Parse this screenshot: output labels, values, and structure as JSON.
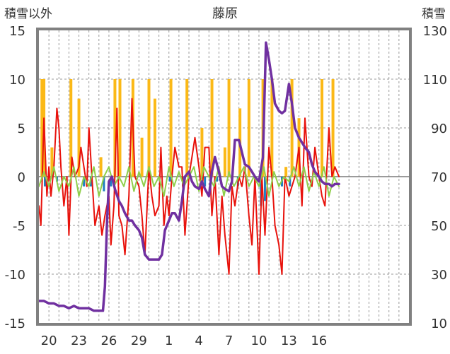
{
  "chart_data": {
    "type": "line",
    "title": "藤原",
    "y_left_label": "積雪以外",
    "y_right_label": "積雪",
    "y_left_ticks": [
      "15",
      "10",
      "5",
      "0",
      "-5",
      "-10",
      "-15"
    ],
    "y_right_ticks": [
      "130",
      "110",
      "90",
      "70",
      "50",
      "30",
      "10"
    ],
    "x_tick_labels": [
      "20",
      "23",
      "26",
      "29",
      "1",
      "4",
      "7",
      "10",
      "13",
      "16"
    ],
    "y_left_range": [
      -15,
      15
    ],
    "y_right_range": [
      10,
      130
    ],
    "x_range": [
      0,
      37
    ],
    "x_tick_positions": [
      1,
      4,
      7,
      10,
      13,
      16,
      19,
      22,
      25,
      28
    ],
    "grid": true,
    "colors": {
      "red": "#e8120c",
      "orange": "#fbb917",
      "green": "#8fcf4a",
      "blue": "#1f7fc1",
      "purple": "#7030a0",
      "frame": "#808080"
    },
    "series": [
      {
        "key": "red",
        "axis": "left",
        "x": [
          0,
          0.2,
          0.5,
          0.8,
          1.0,
          1.2,
          1.5,
          1.8,
          2.0,
          2.2,
          2.5,
          2.8,
          3.0,
          3.3,
          3.6,
          4.0,
          4.2,
          4.5,
          4.8,
          5.0,
          5.3,
          5.6,
          6.0,
          6.3,
          6.6,
          7.0,
          7.2,
          7.5,
          7.8,
          8.0,
          8.3,
          8.6,
          9.0,
          9.3,
          9.6,
          10.0,
          10.3,
          10.6,
          11.0,
          11.3,
          11.6,
          12.0,
          12.2,
          12.5,
          12.8,
          13.0,
          13.3,
          13.6,
          14.0,
          14.3,
          14.6,
          15.0,
          15.3,
          15.6,
          16.0,
          16.3,
          16.6,
          17.0,
          17.3,
          17.6,
          18.0,
          18.3,
          18.6,
          19.0,
          19.3,
          19.6,
          20.0,
          20.3,
          20.6,
          21.0,
          21.3,
          21.6,
          22.0,
          22.3,
          22.6,
          23.0,
          23.3,
          23.6,
          24.0,
          24.3,
          24.6,
          25.0,
          25.3,
          25.6,
          26.0,
          26.3,
          26.6,
          27.0,
          27.3,
          27.6,
          28.0,
          28.3,
          28.6,
          29.0,
          29.3,
          29.6,
          30.0
        ],
        "values": [
          -3,
          -5,
          6,
          -2,
          1,
          -2,
          1,
          7,
          5,
          1,
          -3,
          0,
          -6,
          2,
          0,
          1,
          3,
          1,
          -1,
          5,
          0,
          -5,
          -3,
          -6,
          -4,
          -2,
          -7,
          -3,
          7,
          -4,
          -5,
          -8,
          -2,
          8,
          0,
          -1,
          -4,
          -8,
          1,
          -2,
          -4,
          -3,
          3,
          -5,
          -2,
          -4,
          0,
          3,
          1,
          1,
          -6,
          0,
          2,
          4,
          1,
          -2,
          3,
          3,
          -4,
          0,
          -8,
          -2,
          -6,
          -10,
          -1,
          -3,
          0,
          -1,
          1,
          -4,
          -7,
          0,
          -10,
          0,
          -6,
          3,
          0,
          -5,
          -7,
          -10,
          0,
          -2,
          -1,
          0,
          3,
          -3,
          6,
          0,
          -1,
          3,
          0,
          -2,
          -3,
          5,
          0,
          1,
          0
        ]
      },
      {
        "key": "green",
        "axis": "left",
        "x": [
          0,
          0.5,
          1.0,
          1.5,
          2.0,
          2.5,
          3.0,
          3.5,
          4.0,
          4.5,
          5.0,
          5.5,
          6.0,
          6.5,
          7.0,
          7.5,
          8.0,
          8.5,
          9.0,
          9.5,
          10.0,
          10.5,
          11.0,
          11.5,
          12.0,
          12.5,
          13.0,
          13.5,
          14.0,
          14.5,
          15.0,
          15.5,
          16.0,
          16.5,
          17.0,
          17.5,
          18.0,
          18.5,
          19.0,
          19.5,
          20.0,
          20.5,
          21.0,
          21.5,
          22.0,
          22.5,
          23.0,
          23.5,
          24.0,
          24.5,
          25.0,
          25.5,
          26.0,
          26.5,
          27.0,
          27.5,
          28.0,
          28.5,
          29.0,
          29.5,
          30.0
        ],
        "values": [
          -1,
          0.5,
          -1,
          1,
          -1.5,
          0,
          -1,
          1,
          -2,
          0,
          -1,
          1,
          -2,
          0,
          1,
          -1,
          0,
          -1,
          1,
          -1.5,
          0.5,
          -1,
          1,
          -1,
          0,
          -2,
          1,
          -1,
          0.5,
          -1,
          0,
          1,
          -1.5,
          1,
          0,
          -1,
          1,
          -2,
          0.5,
          -1,
          0,
          1,
          -1,
          0,
          -1,
          1,
          -2,
          0.5,
          -1,
          0,
          -0.5,
          1,
          -1,
          1,
          -1.5,
          0.5,
          -1,
          1,
          -2,
          0,
          -1
        ]
      },
      {
        "key": "purple",
        "axis": "right",
        "x": [
          0,
          0.5,
          1.0,
          1.5,
          2.0,
          2.5,
          3.0,
          3.5,
          4.0,
          4.5,
          5.0,
          5.5,
          6.0,
          6.4,
          6.6,
          6.8,
          7.0,
          7.3,
          7.6,
          8.0,
          8.3,
          8.6,
          9.0,
          9.3,
          9.6,
          10.0,
          10.3,
          10.6,
          11.0,
          11.5,
          12.0,
          12.3,
          12.6,
          13.0,
          13.3,
          13.6,
          14.0,
          14.3,
          14.6,
          15.0,
          15.3,
          15.6,
          16.0,
          16.3,
          16.6,
          17.0,
          17.3,
          17.6,
          18.0,
          18.3,
          18.6,
          19.0,
          19.3,
          19.6,
          20.0,
          20.3,
          20.6,
          21.0,
          21.3,
          21.6,
          22.0,
          22.4,
          22.7,
          23.0,
          23.3,
          23.6,
          24.0,
          24.3,
          24.6,
          25.0,
          25.3,
          25.6,
          26.0,
          26.3,
          26.6,
          27.0,
          27.3,
          27.6,
          28.0,
          28.3,
          28.6,
          29.0,
          29.3,
          29.6,
          30.0
        ],
        "values": [
          19,
          19,
          18,
          18,
          17,
          17,
          16,
          17,
          16,
          16,
          16,
          15,
          15,
          15,
          25,
          50,
          68,
          70,
          65,
          60,
          58,
          55,
          52,
          52,
          50,
          48,
          45,
          38,
          36,
          36,
          36,
          38,
          48,
          52,
          55,
          55,
          52,
          60,
          70,
          72,
          68,
          66,
          65,
          68,
          65,
          62,
          72,
          78,
          72,
          66,
          65,
          64,
          68,
          85,
          85,
          80,
          75,
          74,
          72,
          70,
          68,
          78,
          125,
          118,
          110,
          100,
          97,
          96,
          97,
          108,
          100,
          90,
          86,
          84,
          82,
          80,
          75,
          72,
          70,
          68,
          67,
          67,
          66,
          67,
          67
        ]
      },
      {
        "key": "orange",
        "axis": "left",
        "x": [
          0.3,
          0.5,
          1.3,
          3.2,
          4.0,
          6.2,
          7.6,
          8.1,
          9.4,
          10.3,
          11.0,
          11.6,
          13.2,
          14.8,
          16.3,
          17.3,
          18.6,
          19.0,
          20.1,
          21.0,
          22.4,
          23.3,
          24.7,
          25.3,
          26.0,
          28.3,
          29.4
        ],
        "values": [
          10,
          10,
          3,
          10,
          8,
          2,
          10,
          10,
          10,
          4,
          10,
          8,
          10,
          10,
          5,
          10,
          3,
          10,
          7,
          10,
          10,
          10,
          1,
          10,
          6,
          10,
          10
        ]
      },
      {
        "key": "blue",
        "axis": "left",
        "x": [
          0.6,
          1.8,
          4.5,
          5.2,
          6.5,
          7.2,
          13.1,
          14.4,
          16.6,
          17.8,
          19.9,
          22.2,
          22.6,
          24.3,
          25.1
        ],
        "values": [
          -1,
          -0.5,
          -1,
          -1,
          -1.5,
          -1,
          -0.5,
          -1,
          -1,
          -0.5,
          -1,
          -3,
          -2.5,
          -1,
          -1
        ]
      }
    ]
  }
}
